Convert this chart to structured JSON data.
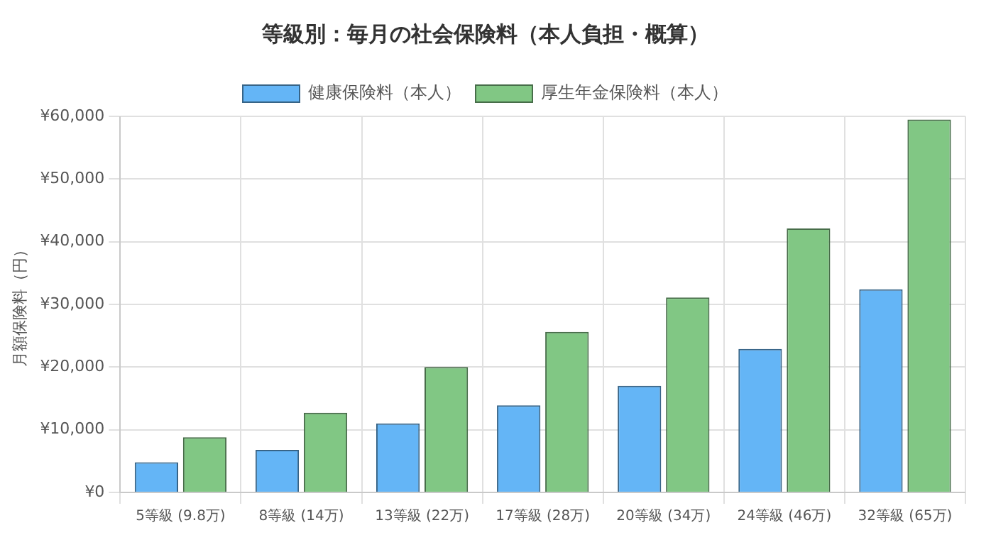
{
  "chart_data": {
    "type": "bar",
    "title": "等級別：毎月の社会保険料（本人負担・概算）",
    "ylabel": "月額保険料（円）",
    "categories": [
      "5等級 (9.8万)",
      "8等級 (14万)",
      "13等級 (22万)",
      "17等級 (28万)",
      "20等級 (34万)",
      "24等級 (46万)",
      "32等級 (65万)"
    ],
    "series": [
      {
        "name": "健康保険料（本人）",
        "color": "#64b5f6",
        "values": [
          4800,
          6800,
          11000,
          13900,
          17000,
          22900,
          32400
        ]
      },
      {
        "name": "厚生年金保険料（本人）",
        "color": "#81c784",
        "values": [
          8800,
          12700,
          20000,
          25600,
          31100,
          42100,
          59500
        ]
      }
    ],
    "ylim": [
      0,
      60000
    ],
    "yticks": [
      {
        "value": 0,
        "label": "¥0"
      },
      {
        "value": 10000,
        "label": "¥10,000"
      },
      {
        "value": 20000,
        "label": "¥20,000"
      },
      {
        "value": 30000,
        "label": "¥30,000"
      },
      {
        "value": 40000,
        "label": "¥40,000"
      },
      {
        "value": 50000,
        "label": "¥50,000"
      },
      {
        "value": 60000,
        "label": "¥60,000"
      }
    ],
    "grid": true,
    "legend": "top"
  }
}
